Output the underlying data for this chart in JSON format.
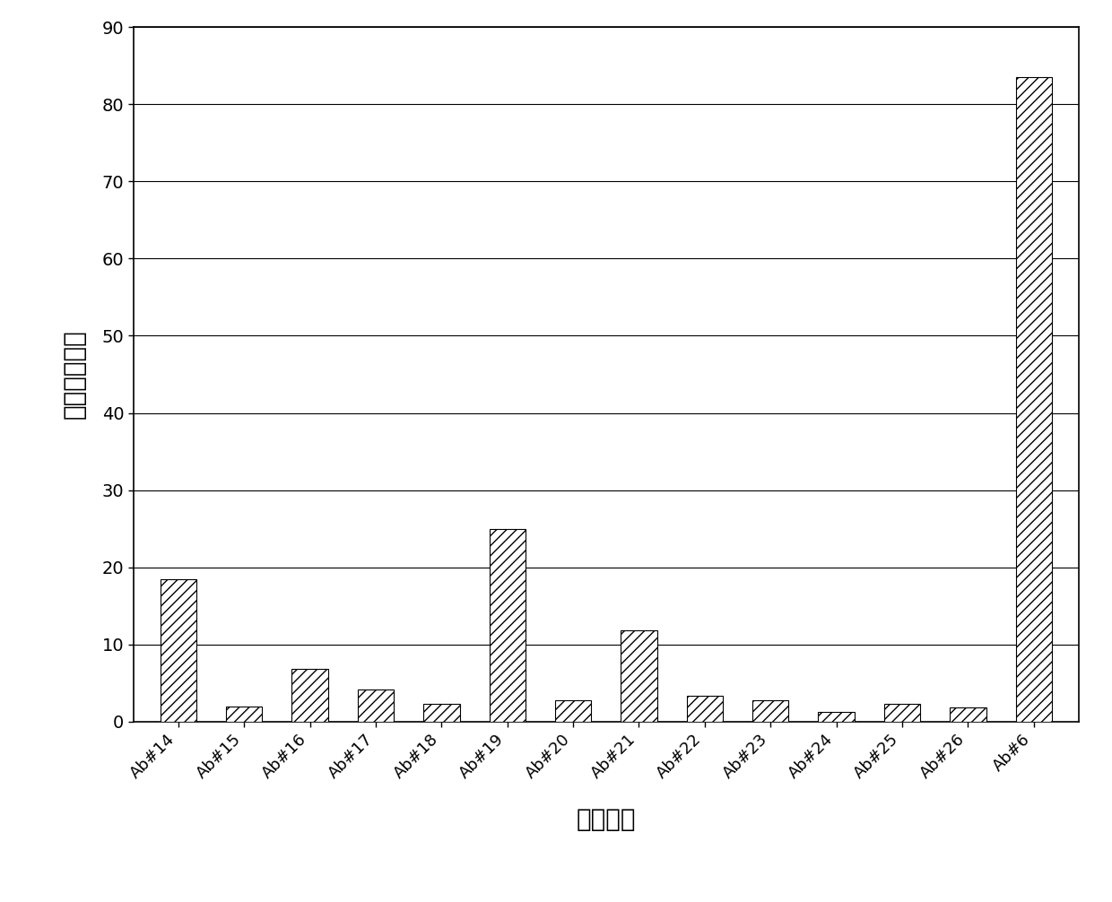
{
  "categories": [
    "Ab#14",
    "Ab#15",
    "Ab#16",
    "Ab#17",
    "Ab#18",
    "Ab#19",
    "Ab#20",
    "Ab#21",
    "Ab#22",
    "Ab#23",
    "Ab#24",
    "Ab#25",
    "Ab#26",
    "Ab#6"
  ],
  "values": [
    18.5,
    2.0,
    6.8,
    4.2,
    2.3,
    25.0,
    2.8,
    11.8,
    3.4,
    2.8,
    1.2,
    2.3,
    1.8,
    83.5
  ],
  "ylabel": "平均荧光强度",
  "xlabel": "抗体克隆",
  "ylim": [
    0,
    90
  ],
  "yticks": [
    0,
    10,
    20,
    30,
    40,
    50,
    60,
    70,
    80,
    90
  ],
  "bar_color": "#ffffff",
  "bar_edgecolor": "#000000",
  "hatch": "///",
  "background_color": "#ffffff",
  "figsize": [
    12.4,
    10.06
  ],
  "dpi": 100
}
